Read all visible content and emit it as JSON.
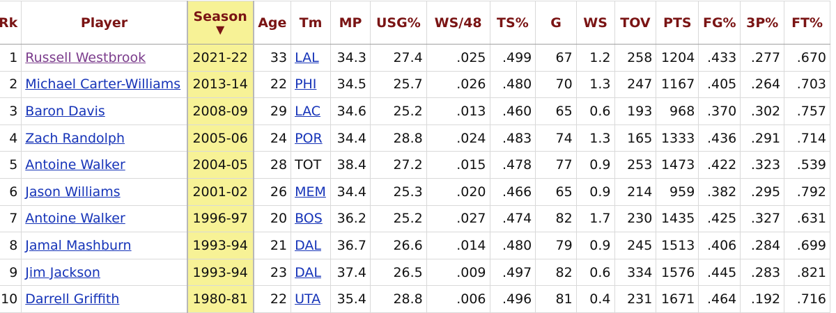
{
  "columns": [
    "Rk",
    "Player",
    "Season",
    "Age",
    "Tm",
    "MP",
    "USG%",
    "WS/48",
    "TS%",
    "G",
    "WS",
    "TOV",
    "PTS",
    "FG%",
    "3P%",
    "FT%"
  ],
  "sort_indicator": "▼",
  "colors": {
    "header_text": "#7a1414",
    "link": "#1533b8",
    "visited_link": "#7b3c8c",
    "sorted_column_bg": "#f7f296"
  },
  "rows": [
    {
      "rk": "1",
      "player": "Russell Westbrook",
      "season": "2021-22",
      "age": "33",
      "tm": "LAL",
      "tm_link": true,
      "mp": "34.3",
      "usg": "27.4",
      "ws48": ".025",
      "ts": ".499",
      "g": "67",
      "ws": "1.2",
      "tov": "258",
      "pts": "1204",
      "fg": ".433",
      "p3": ".277",
      "ft": ".670"
    },
    {
      "rk": "2",
      "player": "Michael Carter-Williams",
      "season": "2013-14",
      "age": "22",
      "tm": "PHI",
      "tm_link": true,
      "mp": "34.5",
      "usg": "25.7",
      "ws48": ".026",
      "ts": ".480",
      "g": "70",
      "ws": "1.3",
      "tov": "247",
      "pts": "1167",
      "fg": ".405",
      "p3": ".264",
      "ft": ".703"
    },
    {
      "rk": "3",
      "player": "Baron Davis",
      "season": "2008-09",
      "age": "29",
      "tm": "LAC",
      "tm_link": true,
      "mp": "34.6",
      "usg": "25.2",
      "ws48": ".013",
      "ts": ".460",
      "g": "65",
      "ws": "0.6",
      "tov": "193",
      "pts": "968",
      "fg": ".370",
      "p3": ".302",
      "ft": ".757"
    },
    {
      "rk": "4",
      "player": "Zach Randolph",
      "season": "2005-06",
      "age": "24",
      "tm": "POR",
      "tm_link": true,
      "mp": "34.4",
      "usg": "28.8",
      "ws48": ".024",
      "ts": ".483",
      "g": "74",
      "ws": "1.3",
      "tov": "165",
      "pts": "1333",
      "fg": ".436",
      "p3": ".291",
      "ft": ".714"
    },
    {
      "rk": "5",
      "player": "Antoine Walker",
      "season": "2004-05",
      "age": "28",
      "tm": "TOT",
      "tm_link": false,
      "mp": "38.4",
      "usg": "27.2",
      "ws48": ".015",
      "ts": ".478",
      "g": "77",
      "ws": "0.9",
      "tov": "253",
      "pts": "1473",
      "fg": ".422",
      "p3": ".323",
      "ft": ".539"
    },
    {
      "rk": "6",
      "player": "Jason Williams",
      "season": "2001-02",
      "age": "26",
      "tm": "MEM",
      "tm_link": true,
      "mp": "34.4",
      "usg": "25.3",
      "ws48": ".020",
      "ts": ".466",
      "g": "65",
      "ws": "0.9",
      "tov": "214",
      "pts": "959",
      "fg": ".382",
      "p3": ".295",
      "ft": ".792"
    },
    {
      "rk": "7",
      "player": "Antoine Walker",
      "season": "1996-97",
      "age": "20",
      "tm": "BOS",
      "tm_link": true,
      "mp": "36.2",
      "usg": "25.2",
      "ws48": ".027",
      "ts": ".474",
      "g": "82",
      "ws": "1.7",
      "tov": "230",
      "pts": "1435",
      "fg": ".425",
      "p3": ".327",
      "ft": ".631"
    },
    {
      "rk": "8",
      "player": "Jamal Mashburn",
      "season": "1993-94",
      "age": "21",
      "tm": "DAL",
      "tm_link": true,
      "mp": "36.7",
      "usg": "26.6",
      "ws48": ".014",
      "ts": ".480",
      "g": "79",
      "ws": "0.9",
      "tov": "245",
      "pts": "1513",
      "fg": ".406",
      "p3": ".284",
      "ft": ".699"
    },
    {
      "rk": "9",
      "player": "Jim Jackson",
      "season": "1993-94",
      "age": "23",
      "tm": "DAL",
      "tm_link": true,
      "mp": "37.4",
      "usg": "26.5",
      "ws48": ".009",
      "ts": ".497",
      "g": "82",
      "ws": "0.6",
      "tov": "334",
      "pts": "1576",
      "fg": ".445",
      "p3": ".283",
      "ft": ".821"
    },
    {
      "rk": "10",
      "player": "Darrell Griffith",
      "season": "1980-81",
      "age": "22",
      "tm": "UTA",
      "tm_link": true,
      "mp": "35.4",
      "usg": "28.8",
      "ws48": ".006",
      "ts": ".496",
      "g": "81",
      "ws": "0.4",
      "tov": "231",
      "pts": "1671",
      "fg": ".464",
      "p3": ".192",
      "ft": ".716"
    }
  ]
}
